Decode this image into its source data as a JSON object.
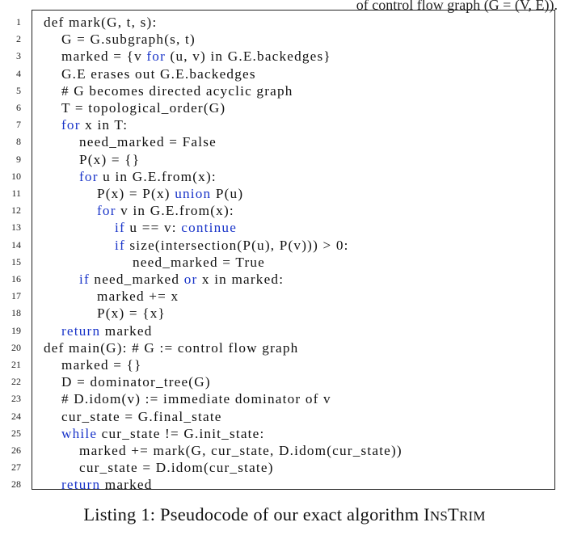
{
  "header_fragment": "of control flow graph (G = (V, E)).",
  "listing": {
    "keyword_color": "#1a35c9",
    "lines": [
      {
        "no": "1",
        "indent": 0,
        "segments": [
          {
            "t": "def mark(G, t, s):"
          }
        ]
      },
      {
        "no": "2",
        "indent": 1,
        "segments": [
          {
            "t": "G = G.subgraph(s, t)"
          }
        ]
      },
      {
        "no": "3",
        "indent": 1,
        "segments": [
          {
            "t": "marked = {v "
          },
          {
            "t": "for",
            "kw": true
          },
          {
            "t": " (u, v) in G.E.backedges}"
          }
        ]
      },
      {
        "no": "4",
        "indent": 1,
        "segments": [
          {
            "t": "G.E erases out G.E.backedges"
          }
        ]
      },
      {
        "no": "5",
        "indent": 1,
        "segments": [
          {
            "t": "# G becomes directed acyclic graph"
          }
        ]
      },
      {
        "no": "6",
        "indent": 1,
        "segments": [
          {
            "t": "T = topological_order(G)"
          }
        ]
      },
      {
        "no": "7",
        "indent": 1,
        "segments": [
          {
            "t": "for",
            "kw": true
          },
          {
            "t": " x in T:"
          }
        ]
      },
      {
        "no": "8",
        "indent": 2,
        "segments": [
          {
            "t": "need_marked = False"
          }
        ]
      },
      {
        "no": "9",
        "indent": 2,
        "segments": [
          {
            "t": "P(x) = {}"
          }
        ]
      },
      {
        "no": "10",
        "indent": 2,
        "segments": [
          {
            "t": "for",
            "kw": true
          },
          {
            "t": " u in G.E.from(x):"
          }
        ]
      },
      {
        "no": "11",
        "indent": 3,
        "segments": [
          {
            "t": "P(x) = P(x) "
          },
          {
            "t": "union",
            "kw": true
          },
          {
            "t": " P(u)"
          }
        ]
      },
      {
        "no": "12",
        "indent": 3,
        "segments": [
          {
            "t": "for",
            "kw": true
          },
          {
            "t": " v in G.E.from(x):"
          }
        ]
      },
      {
        "no": "13",
        "indent": 4,
        "segments": [
          {
            "t": "if",
            "kw": true
          },
          {
            "t": " u == v: "
          },
          {
            "t": "continue",
            "kw": true
          }
        ]
      },
      {
        "no": "14",
        "indent": 4,
        "segments": [
          {
            "t": "if",
            "kw": true
          },
          {
            "t": " size(intersection(P(u), P(v))) > 0:"
          }
        ]
      },
      {
        "no": "15",
        "indent": 5,
        "segments": [
          {
            "t": "need_marked = True"
          }
        ]
      },
      {
        "no": "16",
        "indent": 2,
        "segments": [
          {
            "t": "if",
            "kw": true
          },
          {
            "t": " need_marked "
          },
          {
            "t": "or",
            "kw": true
          },
          {
            "t": " x in marked:"
          }
        ]
      },
      {
        "no": "17",
        "indent": 3,
        "segments": [
          {
            "t": "marked += x"
          }
        ]
      },
      {
        "no": "18",
        "indent": 3,
        "segments": [
          {
            "t": "P(x) = {x}"
          }
        ]
      },
      {
        "no": "19",
        "indent": 1,
        "segments": [
          {
            "t": "return",
            "kw": true
          },
          {
            "t": " marked"
          }
        ]
      },
      {
        "no": "20",
        "indent": 0,
        "segments": [
          {
            "t": "def main(G): # G := control flow graph"
          }
        ]
      },
      {
        "no": "21",
        "indent": 1,
        "segments": [
          {
            "t": "marked = {}"
          }
        ]
      },
      {
        "no": "22",
        "indent": 1,
        "segments": [
          {
            "t": "D = dominator_tree(G)"
          }
        ]
      },
      {
        "no": "23",
        "indent": 1,
        "segments": [
          {
            "t": "# D.idom(v) := immediate dominator of v"
          }
        ]
      },
      {
        "no": "24",
        "indent": 1,
        "segments": [
          {
            "t": "cur_state = G.final_state"
          }
        ]
      },
      {
        "no": "25",
        "indent": 1,
        "segments": [
          {
            "t": "while",
            "kw": true
          },
          {
            "t": " cur_state != G.init_state:"
          }
        ]
      },
      {
        "no": "26",
        "indent": 2,
        "segments": [
          {
            "t": "marked += mark(G, cur_state, D.idom(cur_state))"
          }
        ]
      },
      {
        "no": "27",
        "indent": 2,
        "segments": [
          {
            "t": "cur_state = D.idom(cur_state)"
          }
        ]
      },
      {
        "no": "28",
        "indent": 1,
        "segments": [
          {
            "t": "return",
            "kw": true
          },
          {
            "t": " marked"
          }
        ]
      }
    ]
  },
  "caption": {
    "prefix": "Listing 1: Pseudocode of our exact algorithm ",
    "name_parts": [
      {
        "t": "I",
        "size": "big"
      },
      {
        "t": "NS",
        "size": "small"
      },
      {
        "t": "T",
        "size": "big"
      },
      {
        "t": "RIM",
        "size": "small"
      }
    ]
  }
}
